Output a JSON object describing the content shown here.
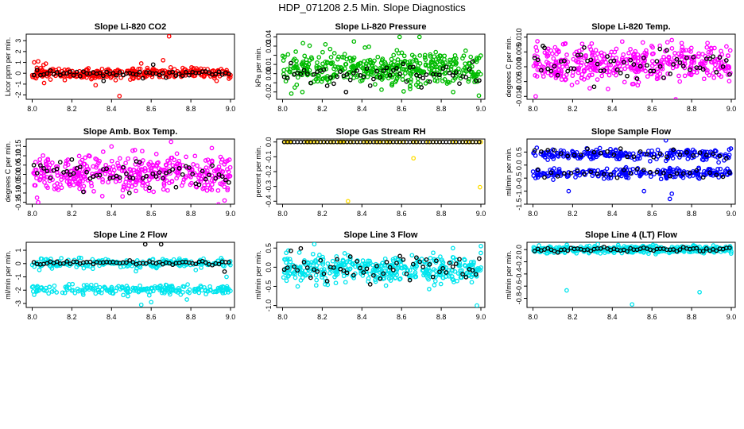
{
  "figure": {
    "title": "HDP_071208  2.5 Min. Slope Diagnostics"
  },
  "colors": {
    "axis": "#000000",
    "overlay_points": "#000000"
  },
  "chart_data": [
    {
      "type": "scatter",
      "title": "Slope Li-820 CO2",
      "ylabel": "Licor ppm per min.",
      "xlabel": "",
      "xlim": [
        7.97,
        9.02
      ],
      "ylim": [
        -2.4,
        3.6
      ],
      "xticks": [
        8.0,
        8.2,
        8.4,
        8.6,
        8.8,
        9.0
      ],
      "xtick_labels": [
        "8.0",
        "8.2",
        "8.4",
        "8.6",
        "8.8",
        "9.0"
      ],
      "yticks": [
        -2,
        -1,
        0,
        1,
        2,
        3
      ],
      "ytick_labels": [
        "-2",
        "-1",
        "0",
        "1",
        "2",
        "3"
      ],
      "series": [
        {
          "name": "main",
          "color": "#ff0000",
          "mode": "band",
          "center": 0.0,
          "spread": 0.25,
          "n": 340,
          "seed": 11,
          "outliers": [
            [
              8.69,
              3.4
            ],
            [
              8.44,
              -2.1
            ],
            [
              8.01,
              1.0
            ],
            [
              8.03,
              1.1
            ],
            [
              8.06,
              -0.9
            ],
            [
              8.32,
              -1.1
            ],
            [
              8.66,
              1.2
            ],
            [
              8.93,
              -0.7
            ],
            [
              8.55,
              0.9
            ]
          ]
        },
        {
          "name": "overlay",
          "color": "#000000",
          "mode": "band",
          "center": 0.0,
          "spread": 0.15,
          "n": 60,
          "seed": 12,
          "outliers": [
            [
              8.61,
              0.8
            ],
            [
              8.36,
              -0.7
            ]
          ]
        }
      ]
    },
    {
      "type": "scatter",
      "title": "Slope Li-820 Pressure",
      "ylabel": "kPa per min.",
      "xlabel": "",
      "xlim": [
        7.97,
        9.02
      ],
      "ylim": [
        -0.028,
        0.043
      ],
      "xticks": [
        8.0,
        8.2,
        8.4,
        8.6,
        8.8,
        9.0
      ],
      "xtick_labels": [
        "8.0",
        "8.2",
        "8.4",
        "8.6",
        "8.8",
        "9.0"
      ],
      "yticks": [
        -0.02,
        -0.01,
        0.0,
        0.01,
        0.02,
        0.03,
        0.04
      ],
      "ytick_labels": [
        "-0.02",
        "",
        "0.00",
        "0.01",
        "",
        "0.03",
        "0.04"
      ],
      "series": [
        {
          "name": "main",
          "color": "#00bb00",
          "mode": "band",
          "center": 0.006,
          "spread": 0.009,
          "n": 440,
          "seed": 21,
          "outliers": [
            [
              8.59,
              0.04
            ],
            [
              8.69,
              0.04
            ],
            [
              8.36,
              0.035
            ],
            [
              8.86,
              -0.02
            ],
            [
              8.99,
              -0.024
            ],
            [
              8.1,
              -0.02
            ]
          ]
        },
        {
          "name": "overlay",
          "color": "#000000",
          "mode": "band",
          "center": -0.002,
          "spread": 0.006,
          "n": 60,
          "seed": 22,
          "outliers": [
            [
              8.32,
              -0.02
            ],
            [
              8.7,
              -0.015
            ]
          ]
        }
      ]
    },
    {
      "type": "scatter",
      "title": "Slope Li-820 Temp.",
      "ylabel": "degrees C per min.",
      "xlabel": "",
      "xlim": [
        7.97,
        9.02
      ],
      "ylim": [
        -0.011,
        0.011
      ],
      "xticks": [
        8.0,
        8.2,
        8.4,
        8.6,
        8.8,
        9.0
      ],
      "xtick_labels": [
        "8.0",
        "8.2",
        "8.4",
        "8.6",
        "8.8",
        "9.0"
      ],
      "yticks": [
        -0.01,
        -0.005,
        0.0,
        0.005,
        0.01
      ],
      "ytick_labels": [
        "-0.010",
        "-0.005",
        "0.000",
        "0.005",
        "0.010"
      ],
      "series": [
        {
          "name": "main",
          "color": "#ff00ff",
          "mode": "band",
          "center": 0.001,
          "spread": 0.0032,
          "n": 420,
          "seed": 31,
          "outliers": [
            [
              8.72,
              -0.011
            ],
            [
              8.7,
              0.009
            ],
            [
              8.45,
              0.0085
            ],
            [
              8.88,
              0.008
            ]
          ]
        },
        {
          "name": "overlay",
          "color": "#000000",
          "mode": "band",
          "center": 0.001,
          "spread": 0.0028,
          "n": 60,
          "seed": 32,
          "outliers": [
            [
              8.05,
              0.007
            ],
            [
              8.64,
              0.006
            ]
          ]
        }
      ]
    },
    {
      "type": "scatter",
      "title": "Slope Amb. Box Temp.",
      "ylabel": "degrees C per min.",
      "xlabel": "",
      "xlim": [
        7.97,
        9.02
      ],
      "ylim": [
        -0.16,
        0.19
      ],
      "xticks": [
        8.0,
        8.2,
        8.4,
        8.6,
        8.8,
        9.0
      ],
      "xtick_labels": [
        "8.0",
        "8.2",
        "8.4",
        "8.6",
        "8.8",
        "9.0"
      ],
      "yticks": [
        -0.15,
        -0.1,
        -0.05,
        0.0,
        0.05,
        0.1,
        0.15
      ],
      "ytick_labels": [
        "-0.15",
        "-0.10",
        "-0.05",
        "0.00",
        "0.05",
        "0.10",
        "0.15"
      ],
      "series": [
        {
          "name": "main",
          "color": "#ff00ff",
          "mode": "band",
          "center": 0.0,
          "spread": 0.05,
          "n": 420,
          "seed": 41,
          "outliers": [
            [
              8.7,
              0.175
            ],
            [
              8.4,
              0.15
            ],
            [
              8.03,
              -0.15
            ],
            [
              8.97,
              -0.14
            ]
          ]
        },
        {
          "name": "overlay",
          "color": "#000000",
          "mode": "band",
          "center": 0.0,
          "spread": 0.035,
          "n": 60,
          "seed": 42,
          "outliers": [
            [
              8.2,
              0.08
            ],
            [
              8.49,
              -0.1
            ]
          ]
        }
      ]
    },
    {
      "type": "scatter",
      "title": "Slope Gas Stream RH",
      "ylabel": "percent per min.",
      "xlabel": "",
      "xlim": [
        7.97,
        9.02
      ],
      "ylim": [
        -0.42,
        0.02
      ],
      "xticks": [
        8.0,
        8.2,
        8.4,
        8.6,
        8.8,
        9.0
      ],
      "xtick_labels": [
        "8.0",
        "8.2",
        "8.4",
        "8.6",
        "8.8",
        "9.0"
      ],
      "yticks": [
        -0.4,
        -0.3,
        -0.2,
        -0.1,
        0.0
      ],
      "ytick_labels": [
        "-0.4",
        "-0.3",
        "-0.2",
        "-0.1",
        "0.0"
      ],
      "series": [
        {
          "name": "main",
          "color": "#ffdd00",
          "mode": "band",
          "center": 0.0,
          "spread": 0.0,
          "n": 60,
          "seed": 51,
          "outliers": [
            [
              8.33,
              -0.4
            ],
            [
              8.66,
              -0.11
            ],
            [
              8.995,
              -0.305
            ]
          ]
        },
        {
          "name": "overlay",
          "color": "#000000",
          "mode": "band",
          "center": 0.0,
          "spread": 0.0,
          "n": 60,
          "seed": 52,
          "outliers": []
        }
      ]
    },
    {
      "type": "scatter",
      "title": "Slope Sample Flow",
      "ylabel": "ml/min per min.",
      "xlabel": "",
      "xlim": [
        7.97,
        9.02
      ],
      "ylim": [
        -1.5,
        1.0
      ],
      "xticks": [
        8.0,
        8.2,
        8.4,
        8.6,
        8.8,
        9.0
      ],
      "xtick_labels": [
        "8.0",
        "8.2",
        "8.4",
        "8.6",
        "8.8",
        "9.0"
      ],
      "yticks": [
        -1.5,
        -1.0,
        -0.5,
        0.0,
        0.5
      ],
      "ytick_labels": [
        "-1.5",
        "-1.0",
        "-0.5",
        "0.0",
        "0.5"
      ],
      "series": [
        {
          "name": "main",
          "color": "#0000ff",
          "mode": "twoband",
          "center": 0.4,
          "center2": -0.3,
          "spread": 0.1,
          "n": 440,
          "seed": 61,
          "outliers": [
            [
              8.67,
              0.95
            ],
            [
              8.69,
              -1.3
            ],
            [
              8.18,
              -1.0
            ],
            [
              8.56,
              -1.0
            ],
            [
              8.7,
              -1.1
            ]
          ]
        },
        {
          "name": "overlay",
          "color": "#000000",
          "mode": "twoband",
          "center": 0.45,
          "center2": -0.3,
          "spread": 0.08,
          "n": 60,
          "seed": 62,
          "outliers": []
        }
      ]
    },
    {
      "type": "scatter",
      "title": "Slope Line 2 Flow",
      "ylabel": "ml/min per min.",
      "xlabel": "",
      "xlim": [
        7.97,
        9.02
      ],
      "ylim": [
        -3.3,
        1.6
      ],
      "xticks": [
        8.0,
        8.2,
        8.4,
        8.6,
        8.8,
        9.0
      ],
      "xtick_labels": [
        "8.0",
        "8.2",
        "8.4",
        "8.6",
        "8.8",
        "9.0"
      ],
      "yticks": [
        -3,
        -2,
        -1,
        0,
        1
      ],
      "ytick_labels": [
        "-3",
        "-2",
        "-1",
        "0",
        "1"
      ],
      "series": [
        {
          "name": "main",
          "color": "#00e5ee",
          "mode": "twoband",
          "center": 0.0,
          "center2": -1.95,
          "spread": 0.18,
          "n": 440,
          "seed": 71,
          "outliers": [
            [
              8.55,
              -3.1
            ],
            [
              8.6,
              -2.9
            ],
            [
              8.78,
              -2.7
            ],
            [
              8.98,
              -1.0
            ]
          ]
        },
        {
          "name": "overlay",
          "color": "#000000",
          "mode": "band",
          "center": 0.05,
          "spread": 0.08,
          "n": 60,
          "seed": 72,
          "outliers": [
            [
              8.57,
              1.45
            ],
            [
              8.65,
              1.45
            ],
            [
              8.97,
              -0.6
            ]
          ]
        }
      ]
    },
    {
      "type": "scatter",
      "title": "Slope Line 3 Flow",
      "ylabel": "ml/min per min.",
      "xlabel": "",
      "xlim": [
        7.97,
        9.02
      ],
      "ylim": [
        -1.05,
        0.65
      ],
      "xticks": [
        8.0,
        8.2,
        8.4,
        8.6,
        8.8,
        9.0
      ],
      "xtick_labels": [
        "8.0",
        "8.2",
        "8.4",
        "8.6",
        "8.8",
        "9.0"
      ],
      "yticks": [
        -1.0,
        -0.5,
        0.0,
        0.5
      ],
      "ytick_labels": [
        "-1.0",
        "-0.5",
        "0.0",
        "0.5"
      ],
      "series": [
        {
          "name": "main",
          "color": "#00e5ee",
          "mode": "band",
          "center": -0.05,
          "spread": 0.18,
          "n": 420,
          "seed": 81,
          "outliers": [
            [
              8.16,
              0.6
            ],
            [
              8.98,
              -1.0
            ],
            [
              9.0,
              0.55
            ]
          ]
        },
        {
          "name": "overlay",
          "color": "#000000",
          "mode": "band",
          "center": 0.0,
          "spread": 0.18,
          "n": 60,
          "seed": 82,
          "outliers": []
        }
      ]
    },
    {
      "type": "scatter",
      "title": "Slope Line 4 (LT) Flow",
      "ylabel": "ml/min per min.",
      "xlabel": "",
      "xlim": [
        7.97,
        9.02
      ],
      "ylim": [
        -0.95,
        0.12
      ],
      "xticks": [
        8.0,
        8.2,
        8.4,
        8.6,
        8.8,
        9.0
      ],
      "xtick_labels": [
        "8.0",
        "8.2",
        "8.4",
        "8.6",
        "8.8",
        "9.0"
      ],
      "yticks": [
        -0.8,
        -0.6,
        -0.4,
        -0.2,
        0.0
      ],
      "ytick_labels": [
        "-0.8",
        "-0.6",
        "-0.4",
        "-0.2",
        "0.0"
      ],
      "series": [
        {
          "name": "main",
          "color": "#00e5ee",
          "mode": "band",
          "center": 0.0,
          "spread": 0.03,
          "n": 420,
          "seed": 91,
          "outliers": [
            [
              8.17,
              -0.67
            ],
            [
              8.84,
              -0.7
            ],
            [
              8.5,
              -0.9
            ]
          ]
        },
        {
          "name": "overlay",
          "color": "#000000",
          "mode": "band",
          "center": 0.0,
          "spread": 0.02,
          "n": 60,
          "seed": 92,
          "outliers": []
        }
      ]
    }
  ]
}
